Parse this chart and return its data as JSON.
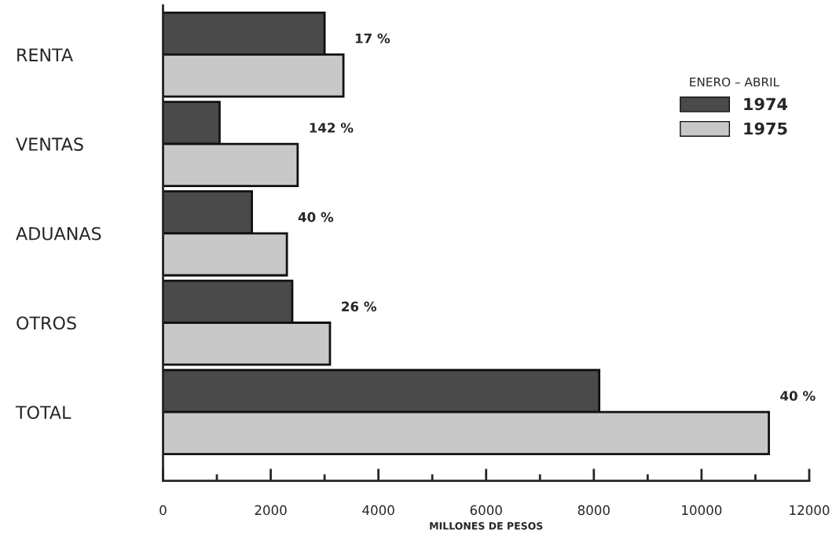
{
  "chart_data": {
    "type": "bar",
    "orientation": "horizontal",
    "xlabel": "MILLONES DE PESOS",
    "legend_title": "ENERO – ABRIL",
    "categories": [
      "RENTA",
      "VENTAS",
      "ADUANAS",
      "OTROS",
      "TOTAL"
    ],
    "series": [
      {
        "name": "1974",
        "color": "#4a4a4a",
        "values": [
          3000,
          1050,
          1650,
          2400,
          8100
        ]
      },
      {
        "name": "1975",
        "color": "#c8c8c8",
        "values": [
          3350,
          2500,
          2300,
          3100,
          11250
        ]
      }
    ],
    "xlim": [
      0,
      12000
    ],
    "xticks": [
      0,
      {
        "value": 1000,
        "label": null
      },
      2000,
      {
        "value": 3000,
        "label": null
      },
      4000,
      {
        "value": 5000,
        "label": null
      },
      6000,
      {
        "value": 7000,
        "label": null
      },
      8000,
      {
        "value": 9000,
        "label": null
      },
      10000,
      {
        "value": 11000,
        "label": null
      },
      12000
    ],
    "annotations": [
      {
        "text": "17 %",
        "x": 3350,
        "y": "RENTA"
      },
      {
        "text": "142 %",
        "x": 2500,
        "y": "VENTAS"
      },
      {
        "text": "40 %",
        "x": 2300,
        "y": "ADUANAS"
      },
      {
        "text": "26 %",
        "x": 3100,
        "y": "OTROS"
      },
      {
        "text": "40 %",
        "x": 11250,
        "y": "TOTAL"
      }
    ],
    "grid": false,
    "legend": "top right"
  }
}
